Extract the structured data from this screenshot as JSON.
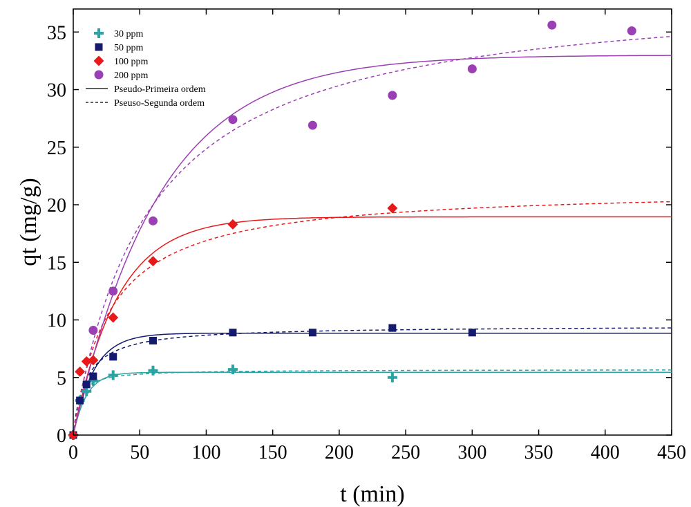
{
  "chart_data": {
    "type": "scatter",
    "xlabel": "t (min)",
    "ylabel": "qt (mg/g)",
    "xlim": [
      0,
      450
    ],
    "ylim": [
      0,
      37
    ],
    "x_ticks": [
      0,
      50,
      100,
      150,
      200,
      250,
      300,
      350,
      400,
      450
    ],
    "y_ticks": [
      0,
      5,
      10,
      15,
      20,
      25,
      30,
      35
    ],
    "grid": false,
    "legend_position": "top-left",
    "series": [
      {
        "name": "30 ppm",
        "marker": "plus",
        "color": "#2ca3a3",
        "x": [
          0,
          5,
          10,
          15,
          30,
          60,
          120,
          240
        ],
        "y": [
          0,
          3.0,
          3.8,
          4.7,
          5.2,
          5.6,
          5.7,
          5.0
        ]
      },
      {
        "name": "50 ppm",
        "marker": "square",
        "color": "#141a6e",
        "x": [
          0,
          5,
          10,
          15,
          30,
          60,
          120,
          180,
          240,
          300
        ],
        "y": [
          0,
          3.0,
          4.4,
          5.1,
          6.8,
          8.2,
          8.9,
          8.9,
          9.3,
          8.9
        ]
      },
      {
        "name": "100 ppm",
        "marker": "diamond",
        "color": "#e8191a",
        "x": [
          0,
          5,
          10,
          15,
          30,
          60,
          120,
          240
        ],
        "y": [
          0,
          5.5,
          6.4,
          6.5,
          10.2,
          15.1,
          18.3,
          19.7
        ]
      },
      {
        "name": "200 ppm",
        "marker": "circle",
        "color": "#9b3fb5",
        "x": [
          15,
          30,
          60,
          120,
          180,
          240,
          300,
          360,
          420
        ],
        "y": [
          9.1,
          12.5,
          18.6,
          27.4,
          26.9,
          29.5,
          31.8,
          35.6,
          35.1
        ]
      }
    ],
    "fits": [
      {
        "series": "30 ppm",
        "model": "Pseudo-Primeira ordem",
        "qe": 5.45,
        "k": 0.1
      },
      {
        "series": "30 ppm",
        "model": "Pseuso-Segunda ordem",
        "qe": 5.7,
        "k": 0.045
      },
      {
        "series": "50 ppm",
        "model": "Pseudo-Primeira ordem",
        "qe": 8.85,
        "k": 0.065
      },
      {
        "series": "50 ppm",
        "model": "Pseuso-Segunda ordem",
        "qe": 9.5,
        "k": 0.011
      },
      {
        "series": "100 ppm",
        "model": "Pseudo-Primeira ordem",
        "qe": 18.95,
        "k": 0.03
      },
      {
        "series": "100 ppm",
        "model": "Pseuso-Segunda ordem",
        "qe": 21.5,
        "k": 0.0017
      },
      {
        "series": "200 ppm",
        "model": "Pseudo-Primeira ordem",
        "qe": 33.0,
        "k": 0.0155
      },
      {
        "series": "200 ppm",
        "model": "Pseuso-Segunda ordem",
        "qe": 39.0,
        "k": 0.00045
      }
    ],
    "legend_lines": [
      {
        "label": "Pseudo-Primeira ordem",
        "style": "solid"
      },
      {
        "label": "Pseuso-Segunda ordem",
        "style": "dashed"
      }
    ]
  }
}
